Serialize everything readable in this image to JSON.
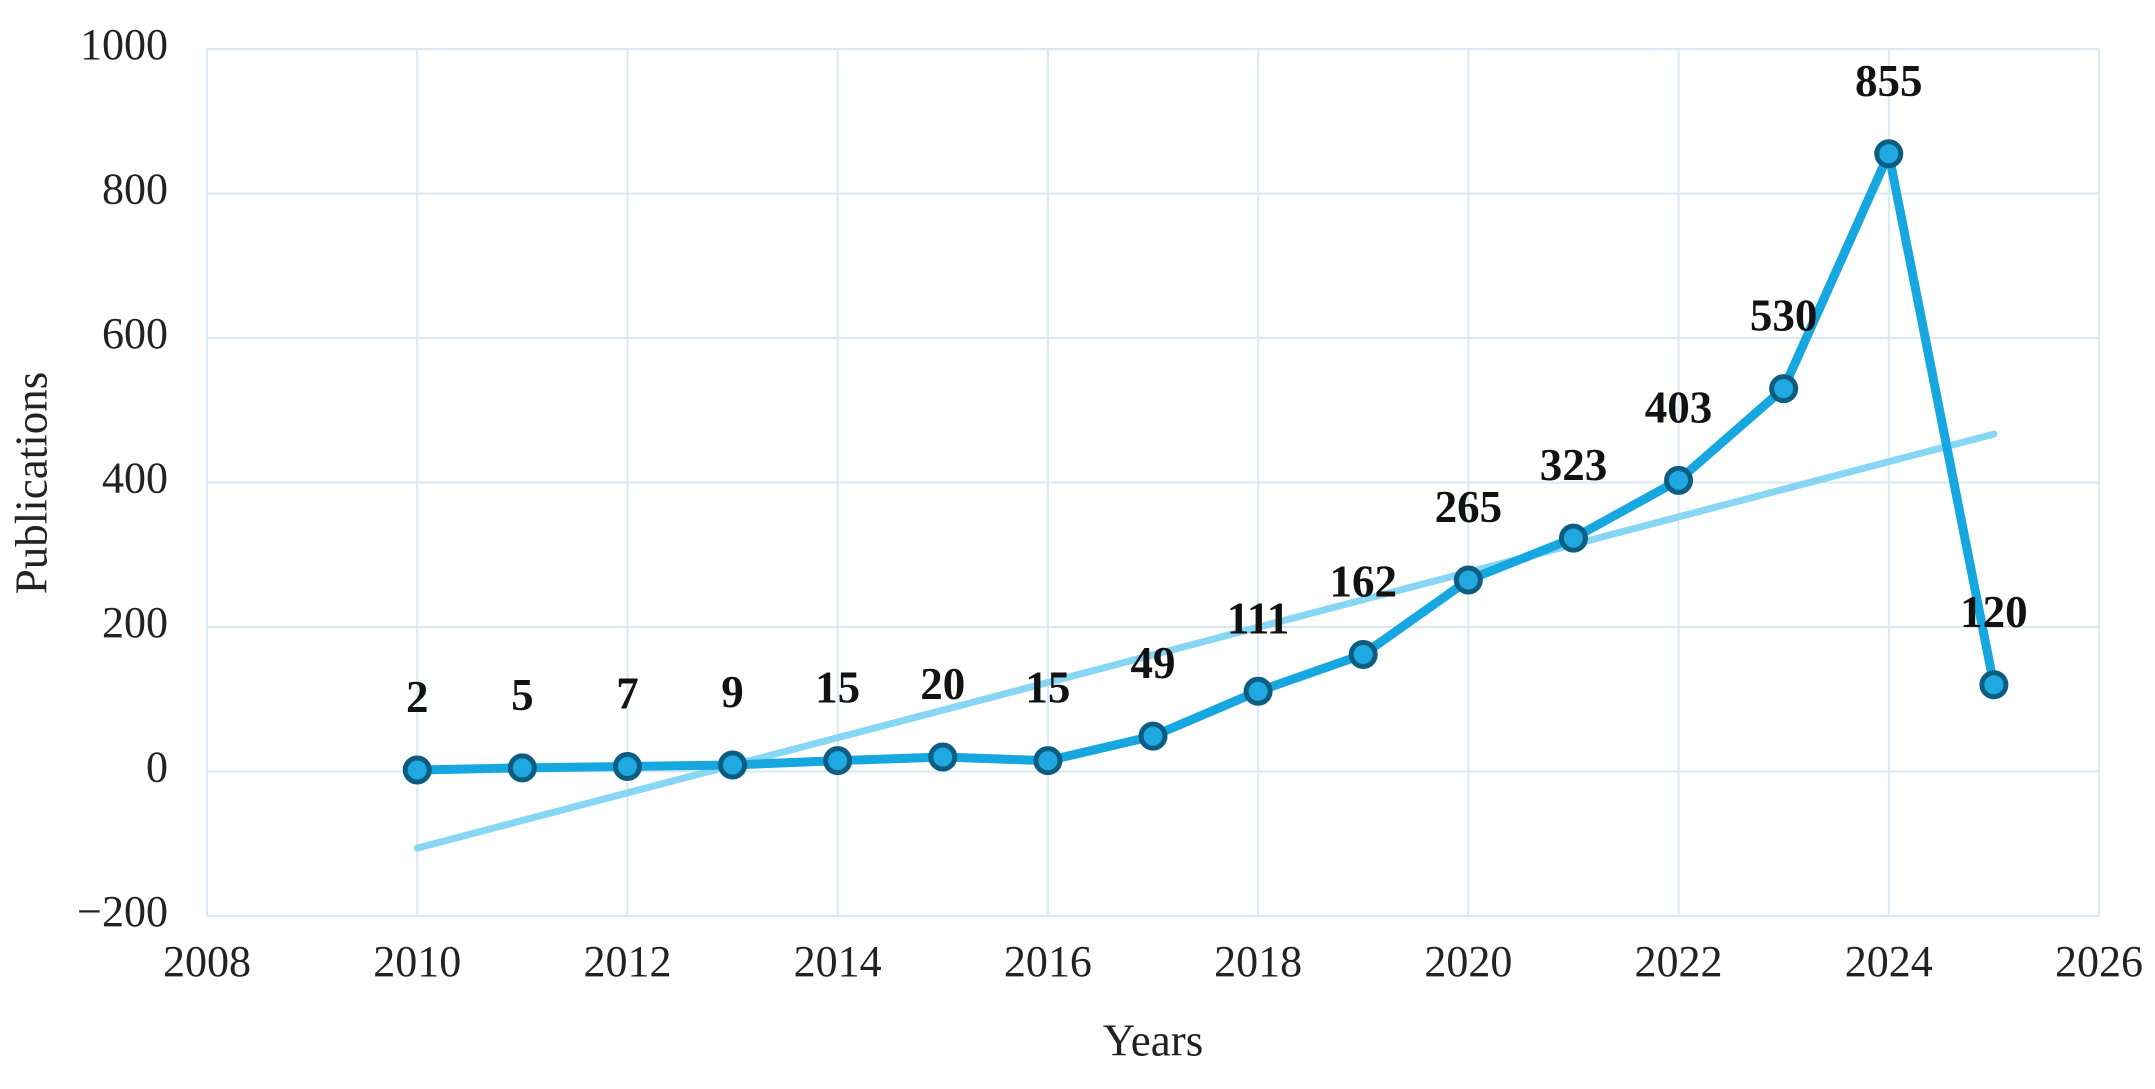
{
  "chart_data": {
    "type": "line",
    "title": "",
    "xlabel": "Years",
    "ylabel": "Publications",
    "x": [
      2010,
      2011,
      2012,
      2013,
      2014,
      2015,
      2016,
      2017,
      2018,
      2019,
      2020,
      2021,
      2022,
      2023,
      2024,
      2025
    ],
    "series": [
      {
        "name": "Publications",
        "values": [
          2,
          5,
          7,
          9,
          15,
          20,
          15,
          49,
          111,
          162,
          265,
          323,
          403,
          530,
          855,
          120
        ]
      }
    ],
    "data_labels": [
      "2",
      "5",
      "7",
      "9",
      "15",
      "20",
      "15",
      "49",
      "111",
      "162",
      "265",
      "323",
      "403",
      "530",
      "855",
      "120"
    ],
    "trendline": {
      "type": "linear",
      "x_start": 2010,
      "y_start": -106,
      "x_end": 2025,
      "y_end": 467
    },
    "x_ticks": [
      2008,
      2010,
      2012,
      2014,
      2016,
      2018,
      2020,
      2022,
      2024,
      2026
    ],
    "y_ticks": [
      -200,
      0,
      200,
      400,
      600,
      800,
      1000
    ],
    "xlim": [
      2008,
      2026
    ],
    "ylim": [
      -200,
      1000
    ],
    "grid": true,
    "legend": false,
    "colors": {
      "series_line": "#16a7e1",
      "marker_fill": "#20a9e1",
      "marker_stroke": "#0d5d82",
      "trendline": "#87d6f4",
      "gridline": "#d9e8f2",
      "tick_text": "#222222",
      "label_text": "#121212",
      "background": "#ffffff"
    }
  }
}
